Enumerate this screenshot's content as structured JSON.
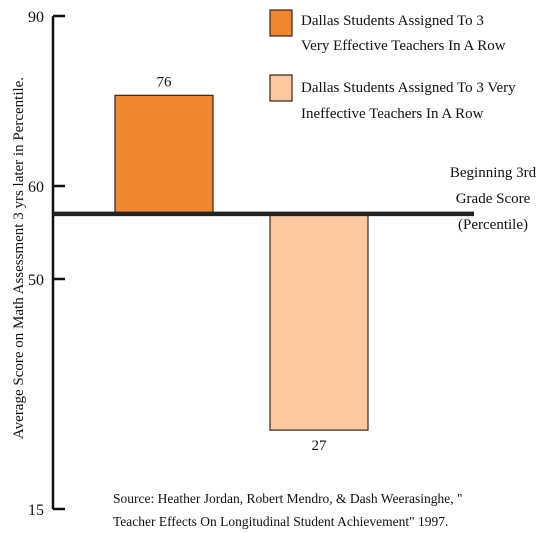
{
  "chart_data": {
    "type": "bar",
    "categories": [
      "",
      ""
    ],
    "series": [
      {
        "name": "Dallas Students Assigned To 3 Very Effective Teachers In A Row",
        "values": [
          76,
          null
        ],
        "color": "#f0862e"
      },
      {
        "name": "Dallas Students Assigned To 3 Very Ineffective Teachers In A Row",
        "values": [
          null,
          27
        ],
        "color": "#fbc8a0"
      }
    ],
    "baseline": {
      "value": 57,
      "label_lines": [
        "Beginning 3rd",
        "Grade Score",
        "(Percentile)"
      ]
    },
    "ylabel": "Average Score on Math Assessment 3 yrs later in Percentile.",
    "xlabel": "",
    "ylim": [
      15,
      90
    ],
    "yticks": [
      15,
      50,
      60,
      90
    ],
    "grid": false,
    "legend_position": "top-right",
    "legend": [
      {
        "lines": [
          "Dallas Students Assigned To 3",
          "Very Effective Teachers In A Row"
        ],
        "color": "#f0862e"
      },
      {
        "lines": [
          "Dallas Students Assigned To 3 Very",
          "Ineffective Teachers In A Row"
        ],
        "color": "#fbc8a0"
      }
    ],
    "source_lines": [
      "Source:  Heather Jordan, Robert Mendro, & Dash Weerasinghe, \"",
      "Teacher Effects On Longitudinal Student Achievement\" 1997."
    ]
  }
}
